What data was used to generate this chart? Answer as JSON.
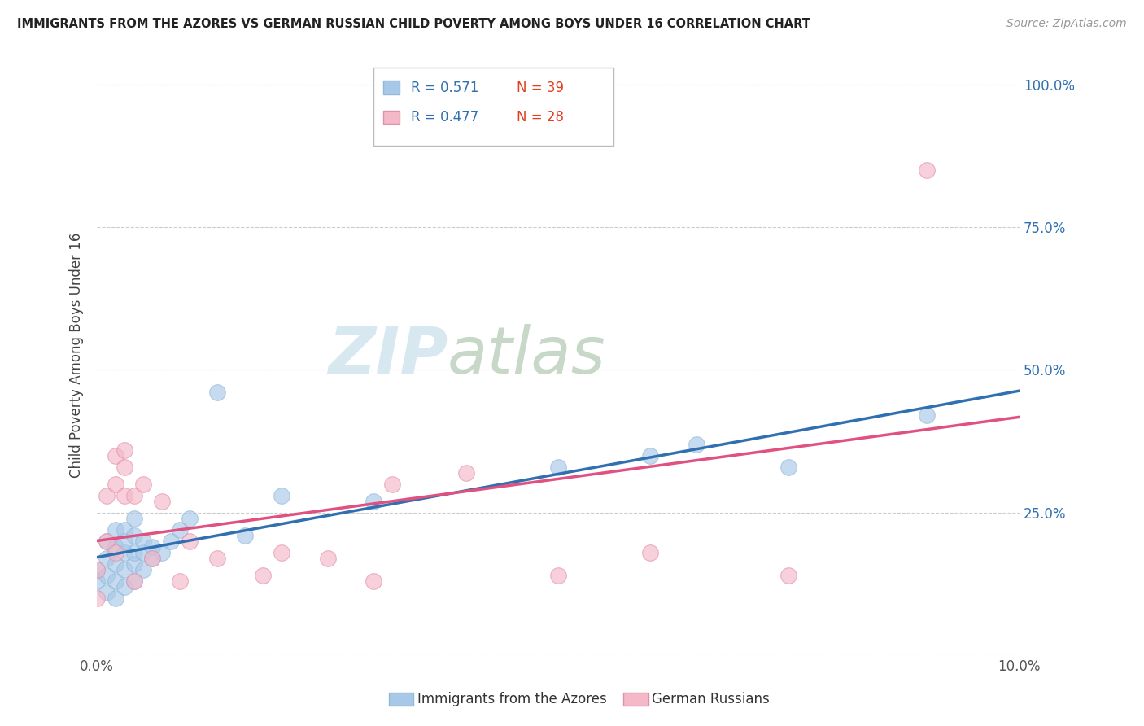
{
  "title": "IMMIGRANTS FROM THE AZORES VS GERMAN RUSSIAN CHILD POVERTY AMONG BOYS UNDER 16 CORRELATION CHART",
  "source": "Source: ZipAtlas.com",
  "ylabel": "Child Poverty Among Boys Under 16",
  "xlim": [
    0.0,
    0.1
  ],
  "ylim": [
    0.0,
    1.05
  ],
  "ytick_positions": [
    0.0,
    0.25,
    0.5,
    0.75,
    1.0
  ],
  "ytick_labels_right": [
    "",
    "25.0%",
    "50.0%",
    "75.0%",
    "100.0%"
  ],
  "watermark_zip": "ZIP",
  "watermark_atlas": "atlas",
  "legend_label1": "Immigrants from the Azores",
  "legend_label2": "German Russians",
  "R1": "0.571",
  "N1": "39",
  "R2": "0.477",
  "N2": "28",
  "color_blue": "#a8c8e8",
  "color_pink": "#f4b8c8",
  "color_blue_line": "#3070b0",
  "color_pink_line": "#e05080",
  "color_blue_text": "#3070b0",
  "color_red_text": "#e04020",
  "azores_x": [
    0.0,
    0.0,
    0.001,
    0.001,
    0.001,
    0.001,
    0.002,
    0.002,
    0.002,
    0.002,
    0.002,
    0.003,
    0.003,
    0.003,
    0.003,
    0.003,
    0.004,
    0.004,
    0.004,
    0.004,
    0.004,
    0.005,
    0.005,
    0.005,
    0.006,
    0.006,
    0.007,
    0.008,
    0.009,
    0.01,
    0.013,
    0.016,
    0.02,
    0.03,
    0.05,
    0.06,
    0.065,
    0.075,
    0.09
  ],
  "azores_y": [
    0.13,
    0.15,
    0.11,
    0.14,
    0.17,
    0.2,
    0.1,
    0.13,
    0.16,
    0.19,
    0.22,
    0.12,
    0.15,
    0.18,
    0.2,
    0.22,
    0.13,
    0.16,
    0.18,
    0.21,
    0.24,
    0.15,
    0.18,
    0.2,
    0.17,
    0.19,
    0.18,
    0.2,
    0.22,
    0.24,
    0.46,
    0.21,
    0.28,
    0.27,
    0.33,
    0.35,
    0.37,
    0.33,
    0.42
  ],
  "german_x": [
    0.0,
    0.0,
    0.001,
    0.001,
    0.002,
    0.002,
    0.002,
    0.003,
    0.003,
    0.003,
    0.004,
    0.004,
    0.005,
    0.006,
    0.007,
    0.009,
    0.01,
    0.013,
    0.018,
    0.02,
    0.025,
    0.03,
    0.032,
    0.04,
    0.05,
    0.06,
    0.075,
    0.09
  ],
  "german_y": [
    0.1,
    0.15,
    0.2,
    0.28,
    0.18,
    0.3,
    0.35,
    0.28,
    0.33,
    0.36,
    0.13,
    0.28,
    0.3,
    0.17,
    0.27,
    0.13,
    0.2,
    0.17,
    0.14,
    0.18,
    0.17,
    0.13,
    0.3,
    0.32,
    0.14,
    0.18,
    0.14,
    0.85
  ]
}
